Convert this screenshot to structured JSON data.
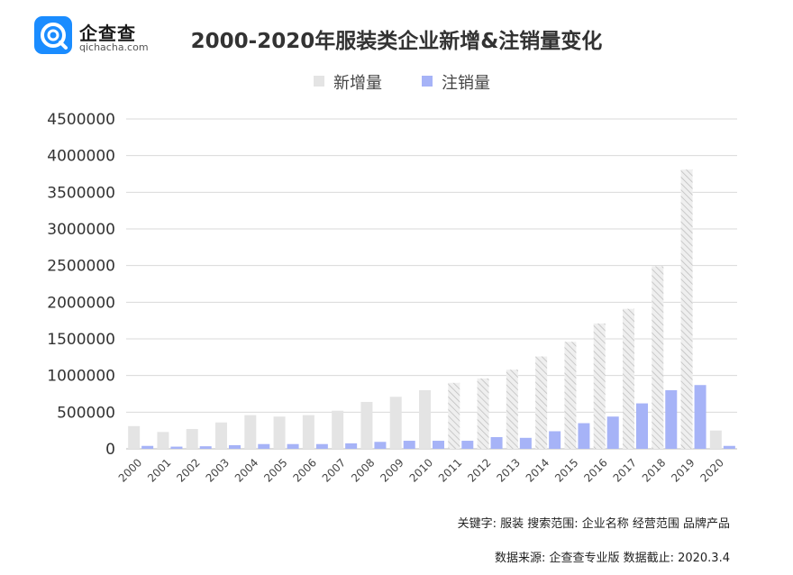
{
  "logo": {
    "name": "企查查",
    "domain": "qichacha.com",
    "color": "#1a8cff"
  },
  "chart_data": {
    "type": "bar",
    "title": "2000-2020年服装类企业新增&注销量变化",
    "categories": [
      "2000",
      "2001",
      "2002",
      "2003",
      "2004",
      "2005",
      "2006",
      "2007",
      "2008",
      "2009",
      "2010",
      "2011",
      "2012",
      "2013",
      "2014",
      "2015",
      "2016",
      "2017",
      "2018",
      "2019",
      "2020"
    ],
    "series": [
      {
        "name": "新增量",
        "color": "#e4e4e4",
        "values": [
          310000,
          230000,
          270000,
          360000,
          460000,
          440000,
          460000,
          520000,
          640000,
          710000,
          800000,
          900000,
          960000,
          1080000,
          1260000,
          1460000,
          1710000,
          1910000,
          2490000,
          3810000,
          250000
        ]
      },
      {
        "name": "注销量",
        "color": "#a6b3f7",
        "values": [
          40000,
          30000,
          35000,
          50000,
          65000,
          65000,
          65000,
          75000,
          95000,
          110000,
          110000,
          110000,
          160000,
          150000,
          240000,
          350000,
          440000,
          620000,
          800000,
          870000,
          40000
        ]
      }
    ],
    "ylim": [
      0,
      4500000
    ],
    "yticks": [
      "0",
      "500000",
      "1000000",
      "1500000",
      "2000000",
      "2500000",
      "3000000",
      "3500000",
      "4000000",
      "4500000"
    ],
    "grid": true,
    "legend": "top-center"
  },
  "footer": {
    "keywords": "关键字: 服装  搜索范围: 企业名称  经营范围  品牌产品",
    "source": "数据来源: 企查查专业版  数据截止: 2020.3.4"
  }
}
